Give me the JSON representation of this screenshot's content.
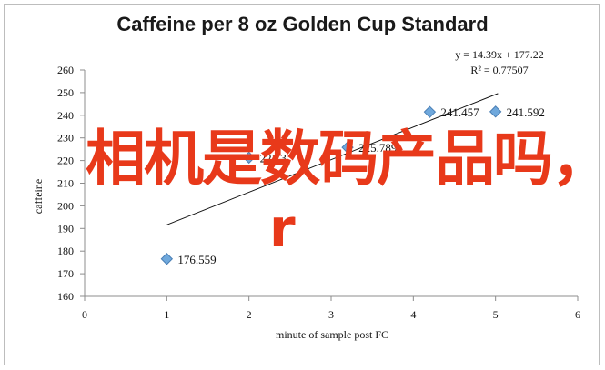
{
  "chart_data": {
    "type": "scatter",
    "title": "Caffeine per 8 oz Golden Cup Standard",
    "xlabel": "minute of sample post FC",
    "ylabel": "caffeine",
    "xlim": [
      0,
      6
    ],
    "ylim": [
      160,
      260
    ],
    "x_ticks": [
      0,
      1,
      2,
      3,
      4,
      5,
      6
    ],
    "y_ticks": [
      160,
      170,
      180,
      190,
      200,
      210,
      220,
      230,
      240,
      250,
      260
    ],
    "points": [
      {
        "x": 1,
        "y": 176.559,
        "label": "176.559"
      },
      {
        "x": 2,
        "y": 221.3,
        "label": "221.3"
      },
      {
        "x": 3.2,
        "y": 225.789,
        "label": "225.789"
      },
      {
        "x": 4.2,
        "y": 241.457,
        "label": "241.457"
      },
      {
        "x": 5,
        "y": 241.592,
        "label": "241.592"
      }
    ],
    "trendline": {
      "slope": 14.39,
      "intercept": 177.22,
      "x_start": 1,
      "x_end": 5.03
    },
    "equation": "y = 14.39x + 177.22",
    "r_squared": "R² = 0.77507",
    "grid": false,
    "marker_color": "#6fa8dc"
  },
  "overlay": {
    "line1": "相机是数码产品吗，",
    "line2": "r",
    "color": "#e8391a"
  }
}
